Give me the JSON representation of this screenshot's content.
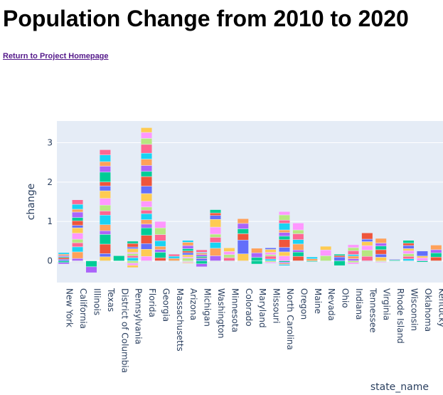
{
  "page": {
    "title": "Population Change from 2010 to 2020",
    "home_link": "Return to Project Homepage"
  },
  "palette": [
    "#636efa",
    "#EF553B",
    "#00cc96",
    "#ab63fa",
    "#FFA15A",
    "#19d3f3",
    "#FF6692",
    "#B6E880",
    "#FF97FF",
    "#FECB52"
  ],
  "chart_data": {
    "type": "bar",
    "barmode": "stack",
    "xlabel": "state_name",
    "ylabel": "change",
    "ylim": [
      -0.55,
      3.55
    ],
    "yticks": [
      0,
      1,
      2,
      3
    ],
    "grid": true,
    "legend": "none",
    "categories": [
      "New York",
      "California",
      "Illinois",
      "Texas",
      "District of Columbia",
      "Pennsylvania",
      "Florida",
      "Georgia",
      "Massachusetts",
      "Arizona",
      "Michigan",
      "Washington",
      "Minnesota",
      "Colorado",
      "Maryland",
      "Missouri",
      "North Carolina",
      "Oregon",
      "Maine",
      "Nevada",
      "Ohio",
      "Indiana",
      "Tennessee",
      "Virginia",
      "Rhode Island",
      "Wisconsin",
      "Oklahoma",
      "Kentucky"
    ],
    "positive_totals": [
      0.21,
      1.55,
      0.0,
      2.82,
      0.13,
      0.5,
      3.38,
      1.0,
      0.17,
      0.52,
      0.28,
      1.3,
      0.33,
      1.07,
      0.32,
      0.33,
      1.25,
      0.96,
      0.1,
      0.37,
      0.17,
      0.41,
      0.71,
      0.57,
      0.04,
      0.52,
      0.25,
      0.4
    ],
    "negative_totals": [
      -0.08,
      -0.05,
      -0.3,
      -0.02,
      0.0,
      -0.17,
      -0.02,
      -0.02,
      -0.01,
      -0.06,
      -0.15,
      -0.03,
      -0.01,
      -0.02,
      -0.08,
      -0.06,
      -0.12,
      -0.01,
      -0.02,
      -0.01,
      -0.12,
      -0.08,
      -0.02,
      -0.04,
      -0.01,
      -0.03,
      -0.03,
      -0.01
    ],
    "segments_per_bar": [
      6,
      14,
      6,
      18,
      1,
      8,
      22,
      8,
      3,
      9,
      7,
      10,
      4,
      6,
      3,
      6,
      11,
      8,
      2,
      3,
      3,
      6,
      6,
      6,
      2,
      8,
      3,
      4
    ]
  }
}
